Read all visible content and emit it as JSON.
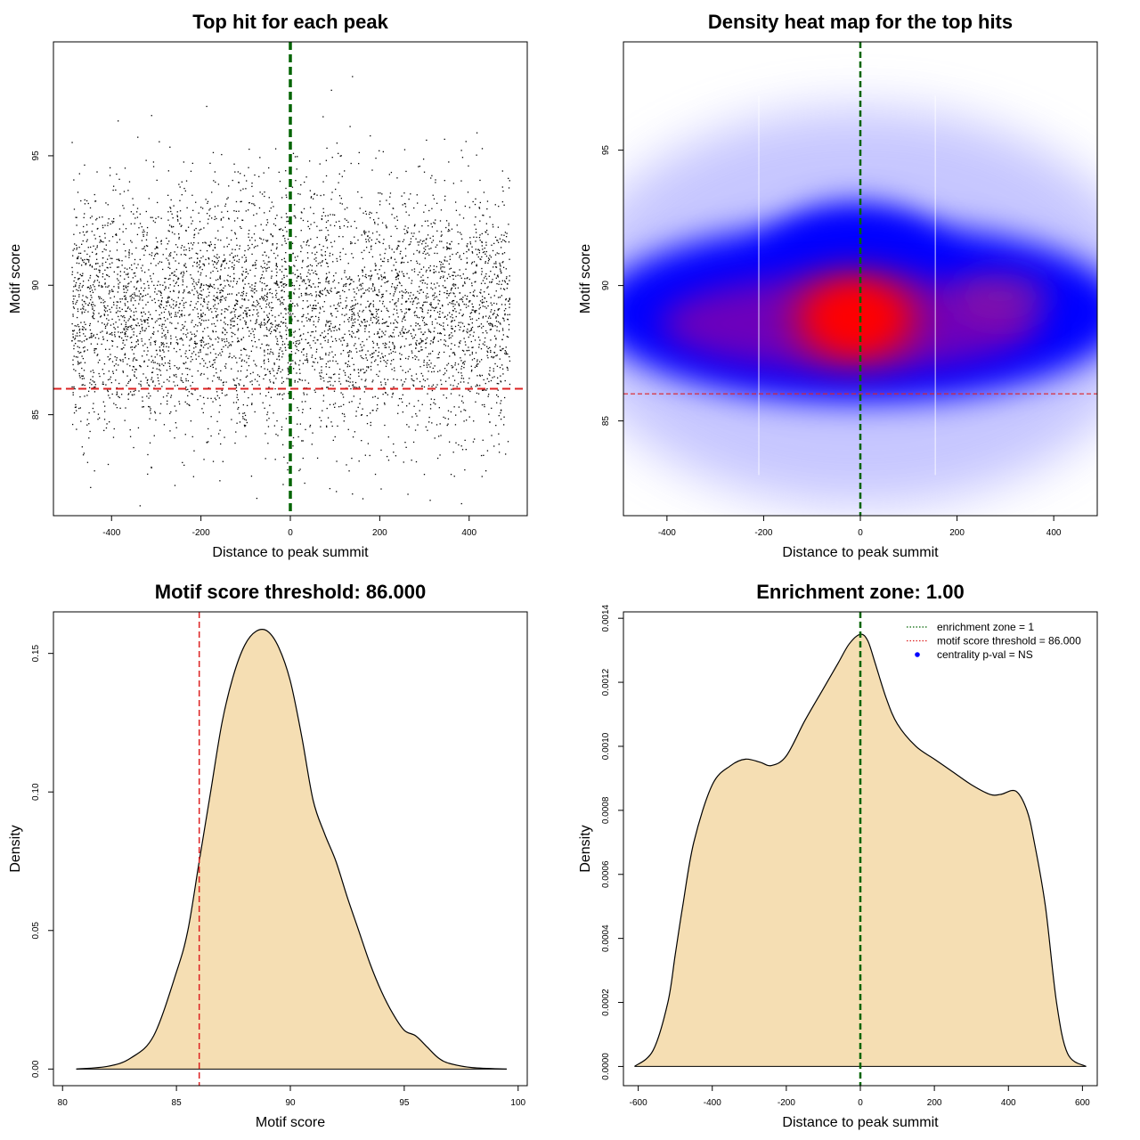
{
  "chart_data": [
    {
      "id": "scatter",
      "type": "scatter",
      "title": "Top hit for each peak",
      "xlabel": "Distance to peak summit",
      "ylabel": "Motif score",
      "xlim": [
        -530,
        530
      ],
      "ylim": [
        81.1,
        99.4
      ],
      "xticks": [
        -400,
        -200,
        0,
        200,
        400
      ],
      "xtick_labels": [
        "-400",
        "-200",
        "0",
        "200",
        "400"
      ],
      "yticks": [
        85,
        90,
        95
      ],
      "ytick_labels": [
        "85",
        "90",
        "95"
      ],
      "x_range": [
        -490,
        490
      ],
      "score_mean": 89.0,
      "score_sd": 2.4,
      "n_points": 5200,
      "vline": {
        "x": 0,
        "color": "#006400"
      },
      "hline": {
        "y": 86,
        "color": "#dd2222"
      },
      "point_color": "#000000"
    },
    {
      "id": "heatmap",
      "type": "heatmap",
      "title": "Density heat map for the top hits",
      "xlabel": "Distance to peak summit",
      "ylabel": "Motif score",
      "xlim": [
        -490,
        490
      ],
      "ylim": [
        81.5,
        99.0
      ],
      "xticks": [
        -400,
        -200,
        0,
        200,
        400
      ],
      "xtick_labels": [
        "-400",
        "-200",
        "0",
        "200",
        "400"
      ],
      "yticks": [
        85,
        90,
        95
      ],
      "ytick_labels": [
        "85",
        "90",
        "95"
      ],
      "hotspot": {
        "x": -10,
        "y": 88.8
      },
      "vline": {
        "x": 0,
        "color": "#006400"
      },
      "hline": {
        "y": 86,
        "color": "#dd2222"
      },
      "colors": [
        "#ffffff",
        "#0000ff",
        "#ff0000"
      ]
    },
    {
      "id": "scoredens",
      "type": "area",
      "title": "Motif score threshold: 86.000",
      "xlabel": "Motif score",
      "ylabel": "Density",
      "xlim": [
        79.6,
        100.4
      ],
      "ylim": [
        -0.006,
        0.165
      ],
      "xticks": [
        80,
        85,
        90,
        95,
        100
      ],
      "xtick_labels": [
        "80",
        "85",
        "90",
        "95",
        "100"
      ],
      "yticks": [
        0,
        0.05,
        0.1,
        0.15
      ],
      "ytick_labels": [
        "0.00",
        "0.05",
        "0.10",
        "0.15"
      ],
      "x": [
        80.6,
        82,
        83,
        84,
        85,
        85.5,
        86,
        86.5,
        87,
        87.5,
        88,
        88.5,
        89,
        89.5,
        90,
        90.5,
        91,
        91.5,
        92,
        92.5,
        93,
        93.5,
        94,
        94.5,
        95,
        95.5,
        96,
        96.5,
        97,
        98,
        99.5
      ],
      "y": [
        0.0,
        0.001,
        0.004,
        0.012,
        0.035,
        0.05,
        0.075,
        0.1,
        0.125,
        0.142,
        0.153,
        0.158,
        0.158,
        0.152,
        0.14,
        0.12,
        0.097,
        0.085,
        0.075,
        0.062,
        0.05,
        0.038,
        0.028,
        0.02,
        0.014,
        0.012,
        0.008,
        0.004,
        0.002,
        0.0005,
        0.0
      ],
      "fill": "#f5deb3",
      "vline": {
        "x": 86,
        "color": "#dd2222"
      }
    },
    {
      "id": "distdens",
      "type": "area",
      "title": "Enrichment zone: 1.00",
      "xlabel": "Distance to peak summit",
      "ylabel": "Density",
      "xlim": [
        -640,
        640
      ],
      "ylim": [
        -6e-05,
        0.00142
      ],
      "xticks": [
        -600,
        -400,
        -200,
        0,
        200,
        400,
        600
      ],
      "xtick_labels": [
        "-600",
        "-400",
        "-200",
        "0",
        "200",
        "400",
        "600"
      ],
      "yticks": [
        0,
        0.0002,
        0.0004,
        0.0006,
        0.0008,
        0.001,
        0.0012,
        0.0014
      ],
      "ytick_labels": [
        "0.0000",
        "0.0002",
        "0.0004",
        "0.0006",
        "0.0008",
        "0.0010",
        "0.0012",
        "0.0014"
      ],
      "x": [
        -610,
        -560,
        -520,
        -500,
        -480,
        -450,
        -400,
        -350,
        -310,
        -270,
        -240,
        -200,
        -150,
        -100,
        -60,
        -30,
        0,
        20,
        40,
        70,
        100,
        150,
        200,
        250,
        300,
        350,
        380,
        420,
        450,
        470,
        500,
        530,
        560,
        610
      ],
      "y": [
        0.0,
        5e-05,
        0.0002,
        0.00035,
        0.0005,
        0.0007,
        0.00088,
        0.00094,
        0.00096,
        0.00095,
        0.00094,
        0.00097,
        0.00108,
        0.00118,
        0.00126,
        0.00132,
        0.00135,
        0.00133,
        0.00126,
        0.00115,
        0.00107,
        0.001,
        0.00096,
        0.00092,
        0.00088,
        0.00085,
        0.00085,
        0.00086,
        0.0008,
        0.0007,
        0.0005,
        0.0002,
        4e-05,
        0.0
      ],
      "fill": "#f5deb3",
      "vline": {
        "x": 0,
        "color": "#006400"
      },
      "legend": {
        "position": "top-right",
        "entries": [
          {
            "label": "enrichment zone = 1",
            "color": "#006400",
            "style": "dotted"
          },
          {
            "label": "motif score threshold = 86.000",
            "color": "#dd2222",
            "style": "dotted"
          },
          {
            "label": "centrality p-val = NS",
            "color": "#0000ff",
            "style": "point"
          }
        ]
      }
    }
  ]
}
